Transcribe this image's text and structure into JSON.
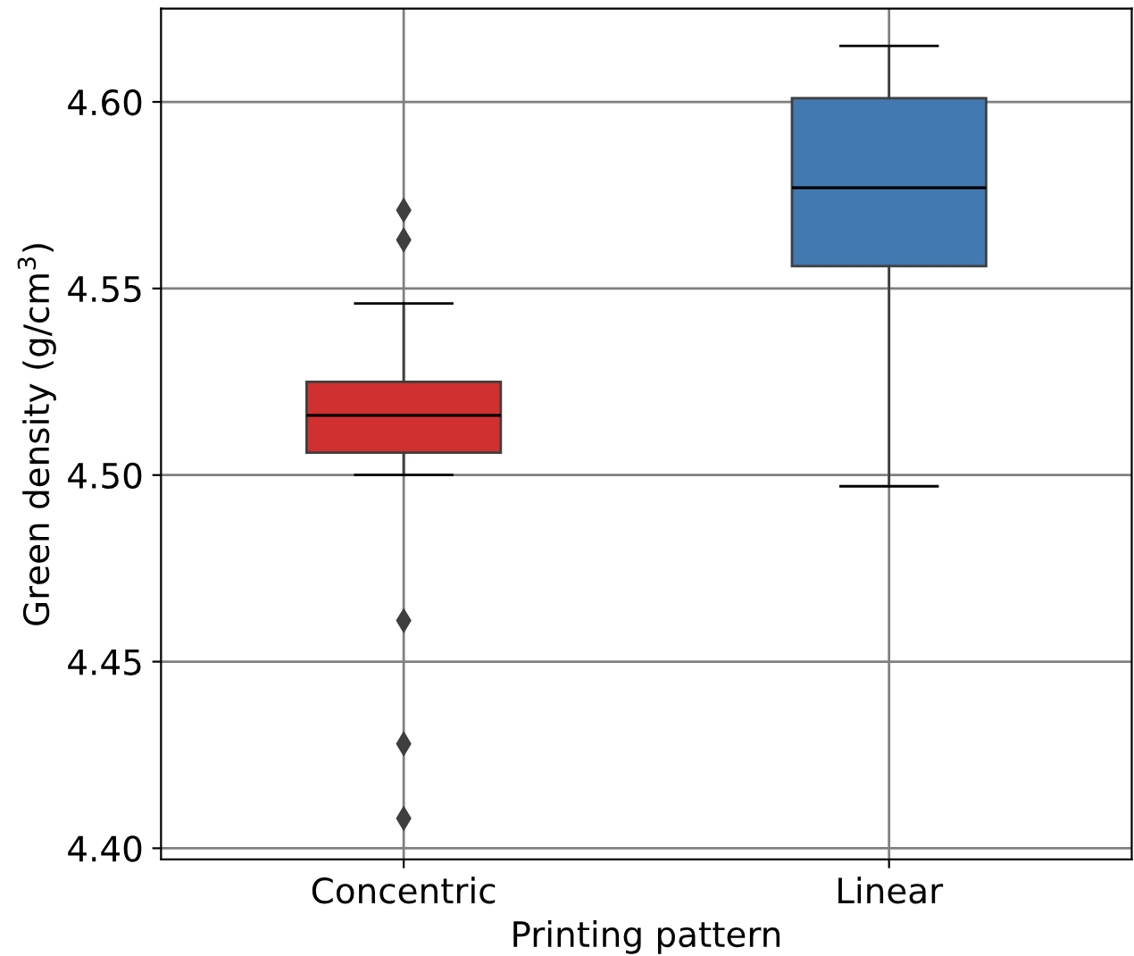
{
  "chart_data": {
    "type": "box",
    "xlabel": "Printing pattern",
    "ylabel": "Green density (g/cm$^{3}$)",
    "categories": [
      "Concentric",
      "Linear"
    ],
    "boxes": [
      {
        "low": 4.5,
        "q1": 4.506,
        "median": 4.516,
        "q3": 4.525,
        "high": 4.546,
        "outliers": [
          4.571,
          4.563,
          4.461,
          4.428,
          4.408
        ]
      },
      {
        "low": 4.497,
        "q1": 4.556,
        "median": 4.577,
        "q3": 4.601,
        "high": 4.615
      }
    ],
    "colors": [
      "#d0302f",
      "#4279b0"
    ],
    "ylim": [
      4.397,
      4.625
    ],
    "yticks": [
      {
        "value": 4.4,
        "label": "4.40"
      },
      {
        "value": 4.45,
        "label": "4.45"
      },
      {
        "value": 4.5,
        "label": "4.50"
      },
      {
        "value": 4.55,
        "label": "4.55"
      },
      {
        "value": 4.6,
        "label": "4.60"
      }
    ],
    "grid": true
  }
}
